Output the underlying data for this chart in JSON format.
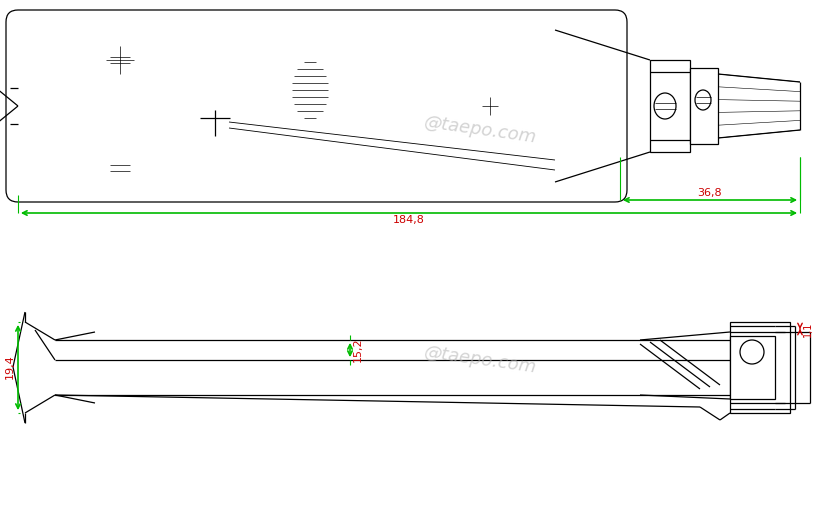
{
  "bg_color": "#ffffff",
  "line_color": "#000000",
  "dim_color": "#00bb00",
  "red_color": "#cc0000",
  "watermark_color": "#b0b0b0",
  "watermark_text": "@taepo.com",
  "dim1_text": "184,8",
  "dim2_text": "36,8",
  "dim3_text": "15,2",
  "dim4_text": "19,4",
  "dim5_text": "1,1",
  "figw": 8.15,
  "figh": 5.21,
  "dpi": 100
}
